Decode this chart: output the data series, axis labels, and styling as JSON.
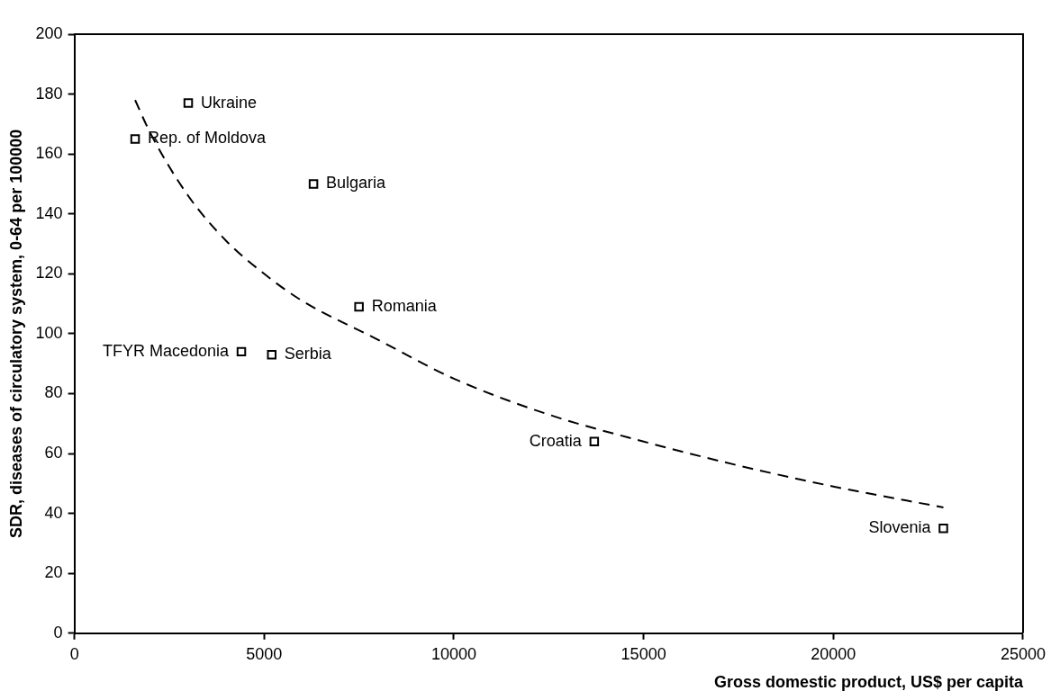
{
  "chart_data": {
    "type": "scatter",
    "xlabel": "Gross domestic product, US$ per capita",
    "ylabel": "SDR, diseases of circulatory system, 0-64 per 100000",
    "series": [
      {
        "type": "scatter",
        "color": "#000000",
        "marker": "square",
        "x": [
          3000,
          1600,
          6300,
          7500,
          4400,
          5200,
          13700,
          22900
        ],
        "values": [
          177,
          165,
          150,
          109,
          94,
          93,
          64,
          35
        ]
      },
      {
        "type": "line",
        "color": "#000000",
        "line_style": "dashed",
        "marker": "none",
        "x": [
          1600,
          2000,
          3000,
          4000,
          5000,
          6000,
          8000,
          10000,
          12500,
          15000,
          17500,
          20000,
          22900
        ],
        "values": [
          178,
          167,
          146,
          131,
          120,
          111,
          98,
          85,
          73,
          64,
          56,
          49,
          42
        ]
      }
    ],
    "annotations": [
      {
        "text": "Ukraine",
        "x": 3000,
        "y": 177
      },
      {
        "text": "Rep. of Moldova",
        "x": 1600,
        "y": 165
      },
      {
        "text": "Bulgaria",
        "x": 6300,
        "y": 150
      },
      {
        "text": "Romania",
        "x": 7500,
        "y": 109
      },
      {
        "text": "TFYR Macedonia",
        "x": 4400,
        "y": 94
      },
      {
        "text": "Serbia",
        "x": 5200,
        "y": 93
      },
      {
        "text": "Croatia",
        "x": 13700,
        "y": 64
      },
      {
        "text": "Slovenia",
        "x": 22900,
        "y": 35
      }
    ],
    "xlim": [
      0,
      25000
    ],
    "xticks": [
      0,
      5000,
      10000,
      15000,
      20000,
      25000
    ],
    "ylim": [
      0,
      200
    ],
    "yticks": [
      0,
      20,
      40,
      60,
      80,
      100,
      120,
      140,
      160,
      180,
      200
    ],
    "grid": false,
    "legend": false
  }
}
